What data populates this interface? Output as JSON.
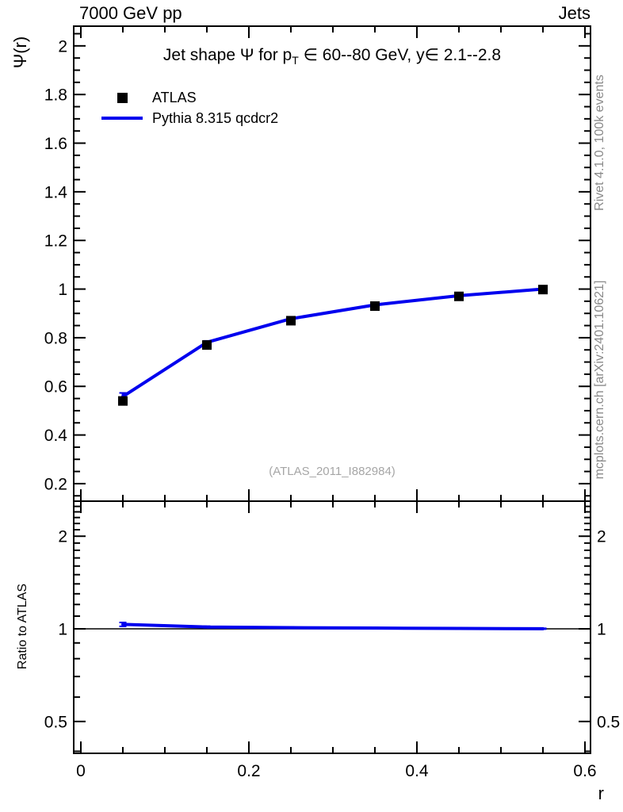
{
  "header": {
    "left": "7000 GeV pp",
    "right": "Jets"
  },
  "sidebar_texts": {
    "top_right": "Rivet 4.1.0,  100k events",
    "bottom_right": "mcplots.cern.ch [arXiv:2401.10621]"
  },
  "watermark": "(ATLAS_2011_I882984)",
  "title": {
    "pre": "Jet shape Ψ for p",
    "sub": "T",
    "post": " ∈ 60--80 GeV, y∈ 2.1--2.8"
  },
  "legend": [
    {
      "label": "ATLAS",
      "marker": "square",
      "color": "#000000"
    },
    {
      "label": "Pythia 8.315 qcdcr2",
      "marker": "line",
      "color": "#0000ee"
    }
  ],
  "axes": {
    "x_label": "r",
    "main_y_label": "Ψ(r)",
    "ratio_y_label": "Ratio to ATLAS"
  },
  "colors": {
    "mc_line": "#0000ee",
    "data_marker": "#000000",
    "frame": "#000000",
    "gray_text": "#8a8a8a",
    "watermark": "#a6a6a6"
  },
  "chart_data": {
    "type": "line",
    "title": "Jet shape Ψ for p_T ∈ 60--80 GeV, y∈ 2.1--2.8",
    "xlabel": "r",
    "x_axis": {
      "label": "r",
      "lim": [
        -0.0085,
        0.6066
      ],
      "major_ticks": [
        0,
        0.2,
        0.4,
        0.6
      ],
      "major_labels": [
        "0",
        "0.2",
        "0.4",
        "0.6"
      ],
      "minor_ticks": [
        0.05,
        0.1,
        0.15,
        0.25,
        0.3,
        0.35,
        0.45,
        0.5,
        0.55
      ]
    },
    "panels": [
      {
        "id": "main",
        "ylabel": "Ψ(r)",
        "yscale": "linear",
        "ylim": [
          0.128,
          2.081
        ],
        "yticks": {
          "major": [
            0.2,
            0.4,
            0.6,
            0.8,
            1.0,
            1.2,
            1.4,
            1.6,
            1.8,
            2.0
          ],
          "labels": [
            "0.2",
            "0.4",
            "0.6",
            "0.8",
            "1",
            "1.2",
            "1.4",
            "1.6",
            "1.8",
            "2"
          ],
          "minor": [
            0.15,
            0.25,
            0.3,
            0.35,
            0.45,
            0.5,
            0.55,
            0.65,
            0.7,
            0.75,
            0.85,
            0.9,
            0.95,
            1.05,
            1.1,
            1.15,
            1.25,
            1.3,
            1.35,
            1.45,
            1.5,
            1.55,
            1.65,
            1.7,
            1.75,
            1.85,
            1.9,
            1.95,
            2.05
          ]
        },
        "series": [
          {
            "name": "ATLAS",
            "type": "scatter-square",
            "color": "#000000",
            "x": [
              0.05,
              0.15,
              0.25,
              0.35,
              0.45,
              0.55
            ],
            "y": [
              0.54,
              0.77,
              0.87,
              0.93,
              0.97,
              0.998
            ],
            "yerr": [
              0.012,
              0.008,
              0.006,
              0.005,
              0.004,
              0.003
            ]
          },
          {
            "name": "Pythia 8.315 qcdcr2",
            "type": "line",
            "color": "#0000ee",
            "x": [
              0.05,
              0.15,
              0.25,
              0.35,
              0.45,
              0.55
            ],
            "y": [
              0.558,
              0.781,
              0.878,
              0.935,
              0.973,
              1.0
            ],
            "yerr": [
              0.015,
              0.006,
              0.005,
              0.004,
              0.004,
              0.003
            ]
          }
        ]
      },
      {
        "id": "ratio",
        "ylabel": "Ratio to ATLAS",
        "yscale": "log",
        "ylim": [
          0.394,
          2.6
        ],
        "reference_line": 1,
        "yticks": {
          "major": [
            0.5,
            1,
            2
          ],
          "labels": [
            "0.5",
            "1",
            "2"
          ],
          "minor": [
            0.4,
            0.6,
            0.7,
            0.8,
            0.9,
            1.1,
            1.2,
            1.3,
            1.4,
            1.5,
            1.6,
            1.7,
            1.8,
            1.9,
            2.1,
            2.2,
            2.3,
            2.4,
            2.5
          ]
        },
        "series": [
          {
            "name": "Pythia 8.315 qcdcr2 / ATLAS",
            "type": "line",
            "color": "#0000ee",
            "x": [
              0.05,
              0.15,
              0.25,
              0.35,
              0.45,
              0.55
            ],
            "y": [
              1.034,
              1.014,
              1.009,
              1.006,
              1.003,
              1.001
            ],
            "yerr": [
              0.015,
              0.006,
              0.005,
              0.005,
              0.004,
              0.003
            ]
          }
        ]
      }
    ],
    "legend_position": "top-left-inside",
    "grid": false
  }
}
